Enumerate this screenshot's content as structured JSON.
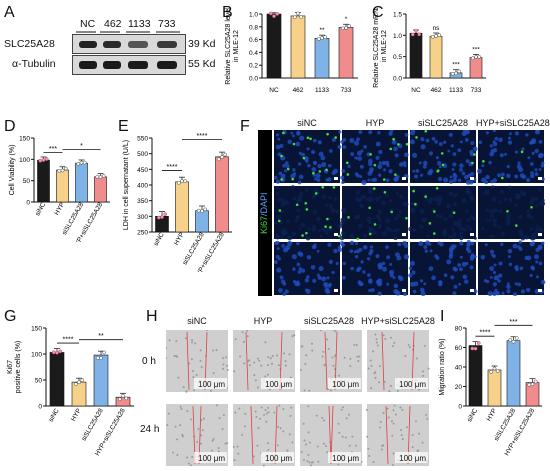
{
  "panels": [
    "A",
    "B",
    "C",
    "D",
    "E",
    "F",
    "G",
    "H",
    "I"
  ],
  "blot": {
    "lanes": [
      "NC",
      "462",
      "1133",
      "733"
    ],
    "rows": [
      {
        "name": "SLC25A28",
        "kd": "39 Kd"
      },
      {
        "name": "α-Tubulin",
        "kd": "55 Kd"
      }
    ]
  },
  "chart_data": [
    {
      "panel": "B",
      "type": "bar",
      "categories": [
        "NC",
        "462",
        "1133",
        "733"
      ],
      "values": [
        1.0,
        0.97,
        0.62,
        0.79
      ],
      "ylabel": "Relative SLC25A28 level in MLE-12",
      "ylim": [
        0,
        1.0
      ],
      "yticks": [
        "0.0",
        "0.2",
        "0.4",
        "0.6",
        "0.8",
        "1.0"
      ],
      "significance": [
        "",
        "",
        "**",
        "*"
      ],
      "colors": [
        "#1a1a1a",
        "#f7d18a",
        "#7fb3e8",
        "#f08c8c"
      ]
    },
    {
      "panel": "C",
      "type": "bar",
      "categories": [
        "NC",
        "462",
        "1133",
        "733"
      ],
      "values": [
        1.05,
        0.98,
        0.12,
        0.48
      ],
      "ylabel": "Relative SLC25A28 mRNA in MLE-12",
      "ylim": [
        0,
        1.5
      ],
      "yticks": [
        "0.0",
        "0.5",
        "1.0",
        "1.5"
      ],
      "significance": [
        "",
        "ns",
        "***",
        "***"
      ],
      "colors": [
        "#1a1a1a",
        "#f7d18a",
        "#7fb3e8",
        "#f08c8c"
      ]
    },
    {
      "panel": "D",
      "type": "bar",
      "categories": [
        "siNC",
        "HYP",
        "siSLC25A28",
        "HYP+siSLC25A28"
      ],
      "values": [
        98,
        75,
        91,
        59
      ],
      "ylabel": "Cell Viability (%)",
      "ylim": [
        0,
        150
      ],
      "yticks": [
        "0",
        "50",
        "100",
        "150"
      ],
      "brackets": [
        {
          "from": 0,
          "to": 1,
          "label": "***"
        },
        {
          "from": 1,
          "to": 3,
          "label": "*"
        }
      ],
      "colors": [
        "#1a1a1a",
        "#f7d18a",
        "#7fb3e8",
        "#f08c8c"
      ]
    },
    {
      "panel": "E",
      "type": "bar",
      "categories": [
        "siNC",
        "HYP",
        "siSLC25A28",
        "HYP+siSLC25A28"
      ],
      "values": [
        300,
        410,
        318,
        490
      ],
      "ylabel": "LDH in cell supernatant (U/L)",
      "ylim": [
        250,
        550
      ],
      "yticks": [
        "250",
        "300",
        "350",
        "400",
        "450",
        "500",
        "550"
      ],
      "brackets": [
        {
          "from": 0,
          "to": 1,
          "label": "****"
        },
        {
          "from": 1,
          "to": 3,
          "label": "****"
        }
      ],
      "colors": [
        "#1a1a1a",
        "#f7d18a",
        "#7fb3e8",
        "#f08c8c"
      ]
    },
    {
      "panel": "G",
      "type": "bar",
      "categories": [
        "siNC",
        "HYP",
        "siSLC25A28",
        "HYP+siSLC25A28"
      ],
      "values": [
        103,
        46,
        98,
        17
      ],
      "ylabel": "Ki67 positive cells (%)",
      "ylim": [
        0,
        150
      ],
      "yticks": [
        "0",
        "50",
        "100",
        "150"
      ],
      "brackets": [
        {
          "from": 0,
          "to": 1,
          "label": "****"
        },
        {
          "from": 1,
          "to": 3,
          "label": "**"
        }
      ],
      "colors": [
        "#1a1a1a",
        "#f7d18a",
        "#7fb3e8",
        "#f08c8c"
      ]
    },
    {
      "panel": "I",
      "type": "bar",
      "categories": [
        "siNC",
        "HYP",
        "siSLC25A28",
        "HYP+siSLC25A28"
      ],
      "values": [
        62,
        37,
        67,
        24
      ],
      "ylabel": "Migration ratio (%)",
      "ylim": [
        0,
        80
      ],
      "yticks": [
        "0",
        "20",
        "40",
        "60",
        "80"
      ],
      "brackets": [
        {
          "from": 0,
          "to": 1,
          "label": "****"
        },
        {
          "from": 1,
          "to": 3,
          "label": "***"
        }
      ],
      "colors": [
        "#1a1a1a",
        "#f7d18a",
        "#7fb3e8",
        "#f08c8c"
      ]
    }
  ],
  "fluor": {
    "columns": [
      "siNC",
      "HYP",
      "siSLC25A28",
      "HYP+siSLC25A28"
    ],
    "ylabel_green": "Ki67",
    "ylabel_blue": "/DAPI"
  },
  "scratch": {
    "columns": [
      "siNC",
      "HYP",
      "siSLC25A28",
      "HYP+siSLC25A28"
    ],
    "rows": [
      "0 h",
      "24 h"
    ],
    "scale": "100 μm"
  }
}
